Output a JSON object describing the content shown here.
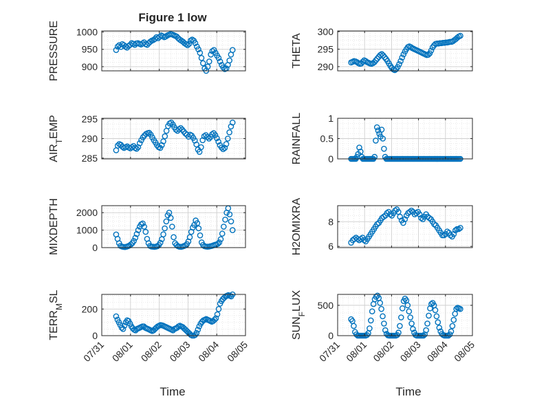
{
  "figure": {
    "title": "Figure 1 low",
    "xlabel": "Time",
    "xtick_labels": [
      "07/31",
      "08/01",
      "08/02",
      "08/03",
      "08/04",
      "08/05"
    ]
  },
  "colors": {
    "marker": "#0072BD",
    "grid": "#d9d9d9",
    "axis": "#262626"
  },
  "chart_data": [
    {
      "type": "scatter",
      "ylabel": "PRESSURE",
      "ylim": [
        888,
        1003
      ],
      "yticks": [
        900,
        950,
        1000
      ],
      "grid": true,
      "x_start": 0.5,
      "x_end": 4.55,
      "series": [
        {
          "values": [
            948,
            958,
            962,
            957,
            965,
            962,
            958,
            955,
            960,
            963,
            968,
            966,
            963,
            967,
            968,
            966,
            964,
            967,
            970,
            965,
            963,
            968,
            972,
            975,
            977,
            980,
            985,
            982,
            986,
            990,
            988,
            985,
            987,
            990,
            992,
            994,
            993,
            991,
            989,
            987,
            982,
            978,
            975,
            972,
            968,
            965,
            962,
            966,
            975,
            978,
            975,
            968,
            958,
            950,
            940,
            925,
            910,
            895,
            888,
            900,
            915,
            935,
            945,
            948,
            940,
            932,
            925,
            915,
            905,
            898,
            893,
            895,
            905,
            918,
            935,
            948
          ]
        }
      ]
    },
    {
      "type": "scatter",
      "ylabel": "THETA",
      "ylim": [
        288.8,
        300.2
      ],
      "yticks": [
        290,
        295,
        300
      ],
      "grid": true,
      "x_start": 0.5,
      "x_end": 4.55,
      "series": [
        {
          "values": [
            291.2,
            291.4,
            291.6,
            291.5,
            291.3,
            291.0,
            290.8,
            290.9,
            291.4,
            291.8,
            291.6,
            291.3,
            291.1,
            290.9,
            290.8,
            291.0,
            291.3,
            291.8,
            292.3,
            292.8,
            293.3,
            293.6,
            293.2,
            292.7,
            292.2,
            291.6,
            290.9,
            290.2,
            289.6,
            289.2,
            289.0,
            289.3,
            289.9,
            290.7,
            291.6,
            292.6,
            293.5,
            294.3,
            295.0,
            295.6,
            295.8,
            295.6,
            295.3,
            295.1,
            294.9,
            294.7,
            294.5,
            294.3,
            294.1,
            293.9,
            293.7,
            293.5,
            293.3,
            293.4,
            293.8,
            294.6,
            295.5,
            296.1,
            296.5,
            296.6,
            296.6,
            296.7,
            296.7,
            296.8,
            296.8,
            296.9,
            296.9,
            297.0,
            297.1,
            297.1,
            297.3,
            297.6,
            297.9,
            298.3,
            298.6,
            298.8
          ]
        }
      ]
    },
    {
      "type": "scatter",
      "ylabel": "AIR_TEMP",
      "ylim": [
        284.8,
        295.2
      ],
      "yticks": [
        285,
        290,
        295
      ],
      "grid": true,
      "x_start": 0.5,
      "x_end": 4.55,
      "series": [
        {
          "values": [
            287.0,
            288.2,
            288.6,
            288.4,
            287.9,
            287.6,
            287.8,
            288.0,
            287.7,
            287.5,
            287.8,
            288.1,
            287.6,
            287.4,
            287.8,
            288.8,
            289.6,
            290.3,
            290.8,
            291.2,
            291.4,
            291.5,
            291.0,
            290.3,
            289.6,
            289.0,
            288.3,
            287.8,
            287.6,
            288.3,
            289.3,
            290.6,
            292.0,
            293.2,
            293.9,
            294.1,
            293.6,
            292.9,
            292.3,
            292.0,
            292.4,
            292.7,
            292.3,
            291.8,
            291.3,
            291.0,
            290.5,
            291.0,
            290.8,
            290.2,
            289.5,
            288.5,
            287.2,
            286.6,
            287.8,
            289.6,
            290.6,
            290.9,
            290.4,
            290.0,
            290.4,
            291.1,
            291.4,
            290.9,
            290.1,
            289.2,
            288.3,
            287.7,
            287.3,
            287.6,
            288.6,
            290.0,
            291.6,
            293.1,
            294.1
          ]
        }
      ]
    },
    {
      "type": "scatter",
      "ylabel": "RAINFALL",
      "ylim": [
        0,
        1
      ],
      "yticks": [
        0,
        0.5,
        1
      ],
      "grid": true,
      "x_start": 0.5,
      "x_end": 4.55,
      "series": [
        {
          "values": [
            0,
            0,
            0,
            0,
            0,
            0.05,
            0.12,
            0.28,
            0.18,
            0.05,
            0,
            0,
            0,
            0,
            0,
            0,
            0,
            0,
            0,
            0,
            0.05,
            0.45,
            0.78,
            0.7,
            0.62,
            0.55,
            0.72,
            0.5,
            0.25,
            0.05,
            0,
            0,
            0,
            0,
            0,
            0,
            0,
            0,
            0,
            0,
            0,
            0,
            0,
            0,
            0,
            0,
            0,
            0,
            0,
            0,
            0,
            0,
            0,
            0,
            0,
            0,
            0,
            0,
            0,
            0,
            0,
            0,
            0,
            0,
            0,
            0,
            0,
            0,
            0,
            0,
            0,
            0,
            0,
            0,
            0,
            0,
            0,
            0,
            0,
            0,
            0,
            0,
            0,
            0,
            0,
            0,
            0,
            0,
            0,
            0,
            0,
            0,
            0,
            0
          ]
        }
      ]
    },
    {
      "type": "scatter",
      "ylabel": "MIXDEPTH",
      "ylim": [
        0,
        2400
      ],
      "yticks": [
        0,
        1000,
        2000
      ],
      "grid": true,
      "x_start": 0.5,
      "x_end": 4.55,
      "series": [
        {
          "values": [
            750,
            500,
            250,
            100,
            60,
            40,
            30,
            50,
            80,
            120,
            180,
            260,
            380,
            560,
            780,
            1000,
            1200,
            1330,
            1380,
            1200,
            900,
            500,
            250,
            100,
            60,
            50,
            40,
            55,
            80,
            150,
            280,
            480,
            760,
            1100,
            1500,
            1850,
            2000,
            1700,
            1200,
            600,
            250,
            150,
            80,
            50,
            40,
            60,
            90,
            130,
            200,
            350,
            600,
            900,
            1150,
            1300,
            1550,
            1400,
            1100,
            700,
            300,
            150,
            80,
            60,
            50,
            60,
            80,
            100,
            130,
            160,
            180,
            220,
            300,
            480,
            800,
            1200,
            1600,
            2000,
            2250,
            1900,
            1500,
            1000
          ]
        }
      ]
    },
    {
      "type": "scatter",
      "ylabel": "H2OMIXRA",
      "ylim": [
        5.9,
        9.3
      ],
      "yticks": [
        6,
        8
      ],
      "grid": true,
      "x_start": 0.5,
      "x_end": 4.55,
      "series": [
        {
          "values": [
            6.3,
            6.5,
            6.6,
            6.7,
            6.6,
            6.5,
            6.6,
            6.7,
            6.5,
            6.4,
            6.6,
            6.8,
            7.0,
            7.2,
            7.4,
            7.6,
            7.8,
            7.9,
            8.1,
            8.3,
            8.4,
            8.5,
            8.7,
            8.8,
            8.6,
            8.5,
            8.7,
            8.9,
            9.0,
            8.8,
            8.4,
            8.1,
            7.9,
            8.2,
            8.5,
            8.7,
            8.8,
            8.9,
            8.8,
            8.6,
            8.7,
            8.8,
            8.6,
            8.3,
            8.2,
            8.4,
            8.6,
            8.4,
            8.3,
            8.2,
            8.0,
            7.8,
            7.7,
            7.5,
            7.3,
            7.1,
            6.9,
            6.9,
            7.0,
            7.2,
            7.1,
            6.9,
            6.8,
            7.0,
            7.3,
            7.4,
            7.4,
            7.5
          ]
        }
      ]
    },
    {
      "type": "scatter",
      "ylabel": "TERR_MSL",
      "ylim": [
        0,
        310
      ],
      "yticks": [
        0,
        200
      ],
      "grid": true,
      "x_start": 0.5,
      "x_end": 4.55,
      "series": [
        {
          "values": [
            145,
            120,
            100,
            80,
            60,
            50,
            75,
            100,
            115,
            110,
            90,
            70,
            55,
            45,
            40,
            50,
            55,
            60,
            65,
            70,
            70,
            60,
            55,
            50,
            45,
            40,
            35,
            40,
            50,
            60,
            70,
            75,
            80,
            78,
            75,
            70,
            65,
            60,
            55,
            50,
            45,
            40,
            50,
            55,
            60,
            70,
            75,
            70,
            65,
            55,
            45,
            35,
            25,
            15,
            5,
            0,
            0,
            5,
            20,
            45,
            70,
            90,
            105,
            115,
            120,
            125,
            120,
            115,
            110,
            105,
            110,
            120,
            130,
            160,
            200,
            240,
            260,
            275,
            285,
            295,
            300,
            305,
            300,
            295,
            310
          ]
        }
      ]
    },
    {
      "type": "scatter",
      "ylabel": "SUN_FLUX",
      "ylim": [
        0,
        680
      ],
      "yticks": [
        0,
        500
      ],
      "grid": true,
      "x_start": 0.5,
      "x_end": 4.55,
      "series": [
        {
          "values": [
            270,
            240,
            160,
            60,
            20,
            0,
            0,
            0,
            0,
            0,
            0,
            0,
            10,
            40,
            120,
            250,
            400,
            520,
            600,
            640,
            660,
            620,
            540,
            440,
            320,
            200,
            90,
            30,
            5,
            0,
            0,
            0,
            0,
            0,
            0,
            10,
            50,
            160,
            300,
            450,
            570,
            610,
            580,
            500,
            400,
            300,
            200,
            110,
            50,
            10,
            0,
            0,
            0,
            0,
            0,
            0,
            20,
            90,
            200,
            330,
            450,
            520,
            540,
            500,
            420,
            320,
            220,
            130,
            70,
            30,
            10,
            0,
            0,
            0,
            0,
            20,
            70,
            160,
            260,
            360,
            440,
            460,
            450,
            440
          ]
        }
      ]
    }
  ]
}
